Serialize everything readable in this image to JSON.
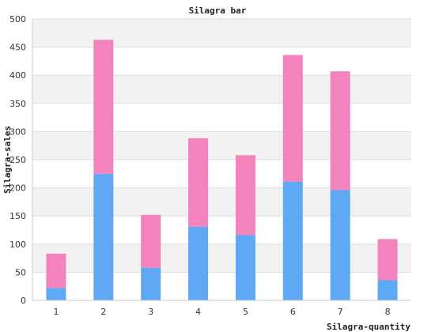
{
  "chart_data": {
    "type": "bar",
    "stacked": true,
    "title": "Silagra bar",
    "xlabel": "Silagra-quantity",
    "ylabel": "Silagra-sales",
    "categories": [
      "1",
      "2",
      "3",
      "4",
      "5",
      "6",
      "7",
      "8"
    ],
    "series": [
      {
        "color": "#5fa8f4",
        "values": [
          22,
          225,
          58,
          131,
          116,
          211,
          196,
          36
        ]
      },
      {
        "color": "#f383bd",
        "values": [
          61,
          238,
          94,
          157,
          142,
          225,
          211,
          73
        ]
      }
    ],
    "ylim": [
      0,
      500
    ],
    "yticks": [
      0,
      50,
      100,
      150,
      200,
      250,
      300,
      350,
      400,
      450,
      500
    ],
    "grid": true,
    "band_colors": [
      "#ffffff",
      "#f2f2f2"
    ]
  }
}
